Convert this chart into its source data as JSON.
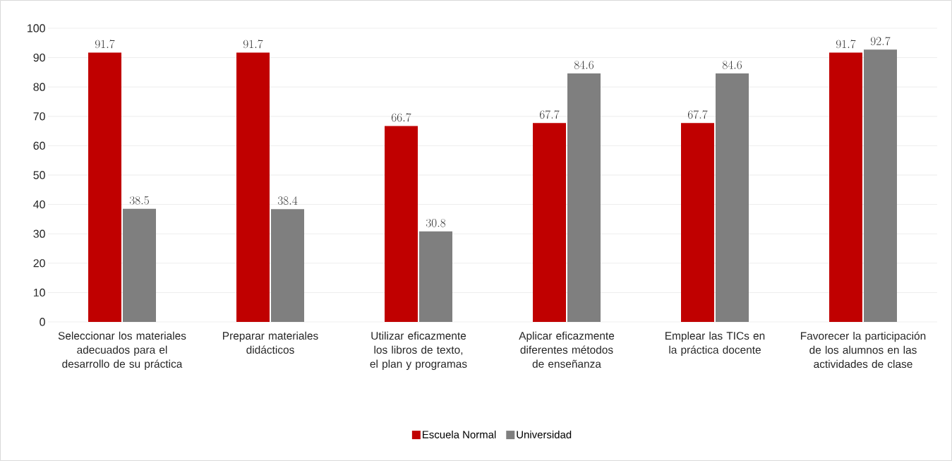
{
  "chart_data": {
    "type": "bar",
    "categories": [
      "Seleccionar los materiales adecuados para el desarrollo de su práctica",
      "Preparar materiales didácticos",
      "Utilizar eficazmente los libros de texto, el plan y programas",
      "Aplicar eficazmente diferentes métodos de enseñanza",
      "Emplear las TICs en la práctica docente",
      "Favorecer la participación de los alumnos en las actividades de clase"
    ],
    "series": [
      {
        "name": "Escuela Normal",
        "color": "#c00000",
        "values": [
          91.7,
          91.7,
          66.7,
          67.7,
          67.7,
          91.7
        ]
      },
      {
        "name": "Universidad",
        "color": "#7f7f7f",
        "values": [
          38.5,
          38.4,
          30.8,
          84.6,
          84.6,
          92.7
        ]
      }
    ],
    "ylim": [
      0,
      100
    ],
    "yticks": [
      0,
      10,
      20,
      30,
      40,
      50,
      60,
      70,
      80,
      90,
      100
    ],
    "grid": "y",
    "legend": "bottom",
    "data_labels": true
  }
}
